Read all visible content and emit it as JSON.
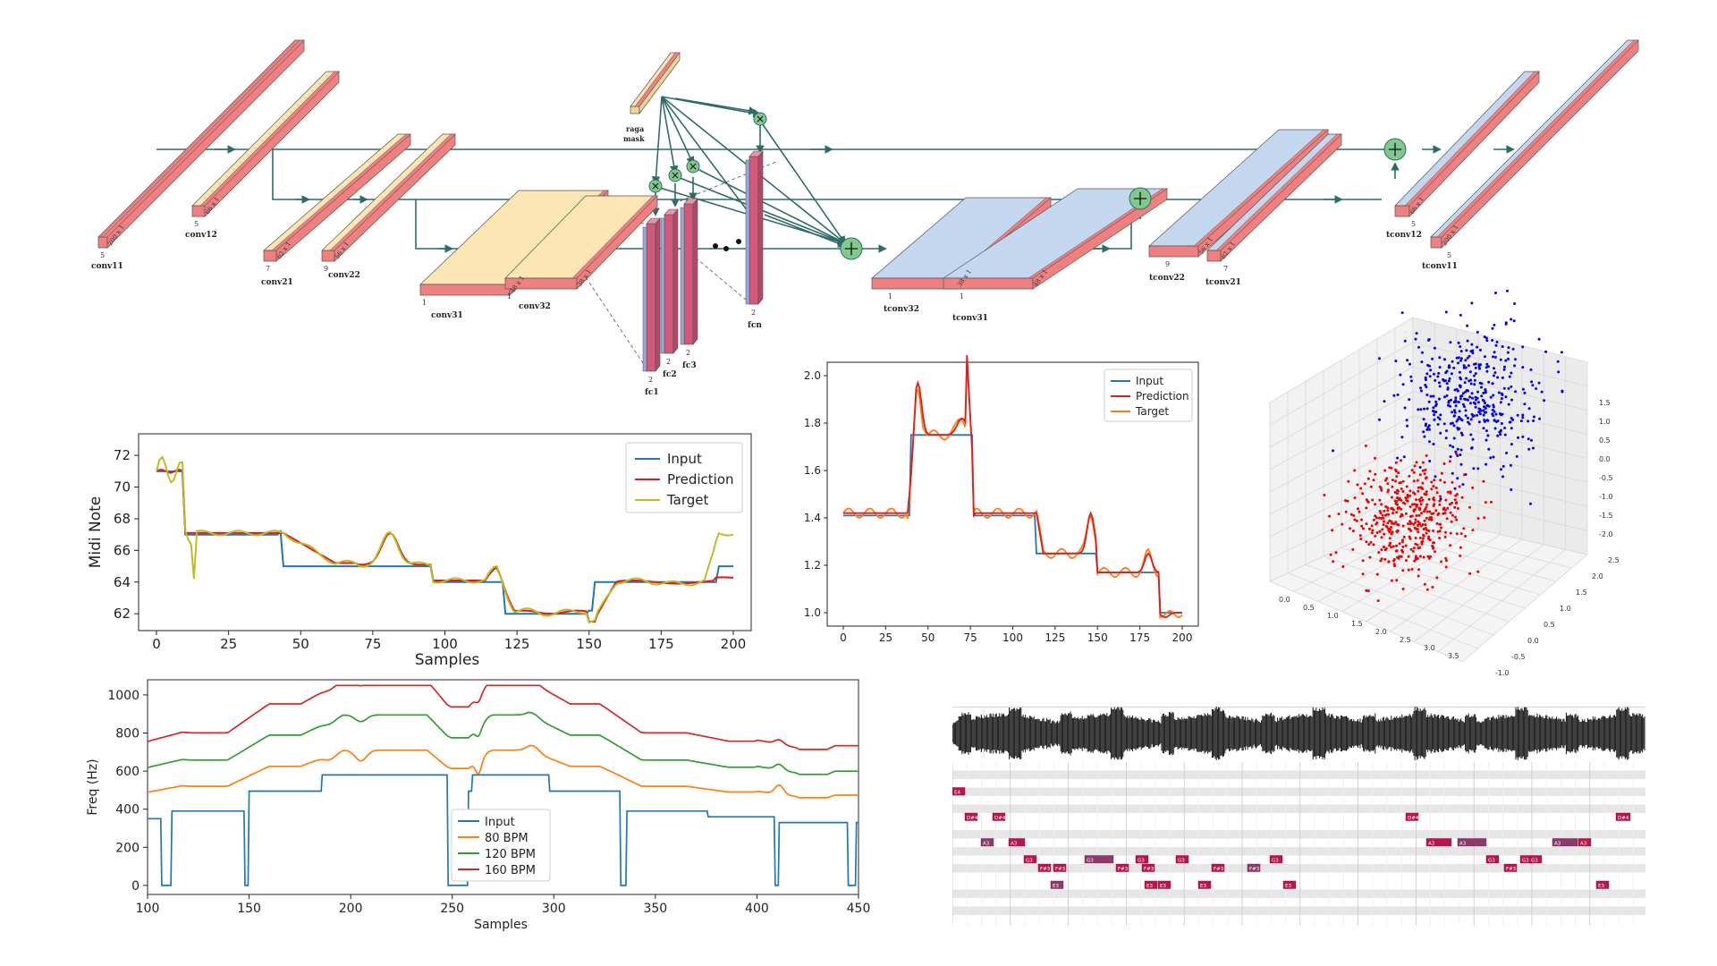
{
  "architecture": {
    "encoder_blocks": [
      {
        "label": "conv11",
        "depth": "5",
        "size": "200 x 1",
        "tone": "red"
      },
      {
        "label": "conv12",
        "depth": "5",
        "size": "66 x 1",
        "tone": "yellow"
      },
      {
        "label": "conv21",
        "depth": "7",
        "size": "62 x 1",
        "tone": "yellow"
      },
      {
        "label": "conv22",
        "depth": "9",
        "size": "56 x 1",
        "tone": "yellow"
      },
      {
        "label": "conv31",
        "depth": "1",
        "size": "48 x 1",
        "tone": "yellow"
      },
      {
        "label": "conv32",
        "depth": "1",
        "size": "38 x 1",
        "tone": "yellow"
      }
    ],
    "fc_blocks": [
      {
        "label": "fc1",
        "depth": "2"
      },
      {
        "label": "fc2",
        "depth": "2"
      },
      {
        "label": "fc3",
        "depth": "2"
      },
      {
        "label": "fcn",
        "depth": "2"
      }
    ],
    "mask_label_1": "raga",
    "mask_label_2": "mask",
    "decoder_blocks": [
      {
        "label": "tconv32",
        "depth": "1",
        "size": "38 x 1"
      },
      {
        "label": "tconv31",
        "depth": "1",
        "size": "48 x 1"
      },
      {
        "label": "tconv22",
        "depth": "9",
        "size": "56 x 1"
      },
      {
        "label": "tconv21",
        "depth": "7",
        "size": "62 x 1"
      },
      {
        "label": "tconv12",
        "depth": "5",
        "size": "66 x 1"
      },
      {
        "label": "tconv11",
        "depth": "5",
        "size": "200 x 1"
      }
    ],
    "colors": {
      "red": "#f08080",
      "yellow": "#fbe6b4",
      "blue": "#c3d8ef",
      "line": "#2f6b68",
      "node": "#7ec98b"
    }
  },
  "midi_chart": {
    "ylabel": "Midi Note",
    "xlabel": "Samples",
    "xticks": [
      "0",
      "25",
      "50",
      "75",
      "100",
      "125",
      "150",
      "175",
      "200"
    ],
    "yticks": [
      "62",
      "64",
      "66",
      "68",
      "70",
      "72"
    ],
    "legend": [
      {
        "name": "Input",
        "color": "#1f77b4"
      },
      {
        "name": "Prediction",
        "color": "#e41a1c"
      },
      {
        "name": "Target",
        "color": "#bcbd22"
      }
    ]
  },
  "norm_chart": {
    "xticks": [
      "0",
      "25",
      "50",
      "75",
      "100",
      "125",
      "150",
      "175",
      "200"
    ],
    "yticks": [
      "1.0",
      "1.2",
      "1.4",
      "1.6",
      "1.8",
      "2.0"
    ],
    "legend": [
      {
        "name": "Input",
        "color": "#1f77b4"
      },
      {
        "name": "Prediction",
        "color": "#e41a1c"
      },
      {
        "name": "Target",
        "color": "#ff7f0e"
      }
    ]
  },
  "freq_chart": {
    "ylabel": "Freq (Hz)",
    "xlabel": "Samples",
    "xticks": [
      "100",
      "150",
      "200",
      "250",
      "300",
      "350",
      "400",
      "450"
    ],
    "yticks": [
      "0",
      "200",
      "400",
      "600",
      "800",
      "1000"
    ],
    "legend": [
      {
        "name": "Input",
        "color": "#1f77b4"
      },
      {
        "name": "80 BPM",
        "color": "#ff7f0e"
      },
      {
        "name": "120 BPM",
        "color": "#2ca02c"
      },
      {
        "name": "160 BPM",
        "color": "#d62728"
      }
    ]
  },
  "scatter3d": {
    "x_ticks": [
      "0.0",
      "0.5",
      "1.0",
      "1.5",
      "2.0",
      "2.5",
      "3.0",
      "3.5"
    ],
    "y_ticks": [
      "-1.0",
      "-0.5",
      "0.0",
      "0.5",
      "1.0",
      "1.5",
      "2.0",
      "2.5"
    ],
    "z_ticks": [
      "-2.0",
      "-1.5",
      "-1.0",
      "-0.5",
      "0.0",
      "0.5",
      "1.0",
      "1.5"
    ],
    "colors": [
      "#0000ee",
      "#ee0000"
    ]
  },
  "piano_roll": {
    "note_labels": [
      "E4",
      "D#4",
      "D#4",
      "A3",
      "A3",
      "G3",
      "F#3",
      "F#3",
      "G3",
      "G3",
      "F#3",
      "F#3",
      "G3",
      "E3",
      "E3",
      "E3",
      "E3",
      "F#3",
      "F#3",
      "G3",
      "E3",
      "D#4",
      "A3",
      "A3",
      "G3",
      "F#3",
      "G3",
      "G3",
      "A3",
      "A3",
      "E3",
      "D#4"
    ],
    "colors": {
      "note": "#c0134a",
      "note_alt": "#8b3a6b",
      "stripe": "#e6e6e6"
    }
  }
}
